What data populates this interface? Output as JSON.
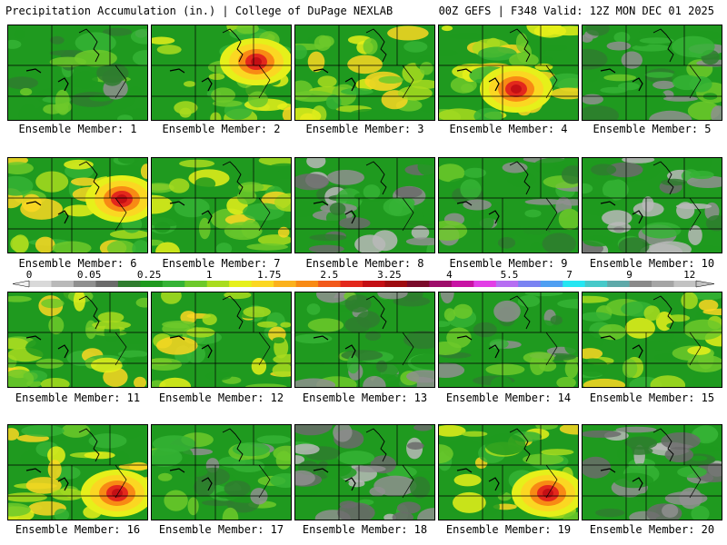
{
  "header": {
    "left": "Precipitation Accumulation (in.) | College of DuPage NEXLAB",
    "right": "00Z GEFS | F348 Valid: 12Z MON DEC 01 2025"
  },
  "chart_data": {
    "type": "heatmap",
    "title": "Precipitation Accumulation (in.)",
    "units": "in.",
    "model": "GEFS",
    "run": "00Z",
    "forecast_hour": "F348",
    "valid": "12Z MON DEC 01 2025",
    "colorbar": {
      "tick_labels": [
        "0",
        "0.05",
        "0.25",
        "1",
        "1.75",
        "2.5",
        "3.25",
        "4",
        "5.5",
        "7",
        "9",
        "12"
      ],
      "colors": [
        "#d9d9d9",
        "#b9b9b9",
        "#8f8f8f",
        "#6b6b6b",
        "#2f7d2f",
        "#1f9a1f",
        "#35b335",
        "#6dc92a",
        "#a9dc1e",
        "#e6f01a",
        "#fbd722",
        "#fbb11c",
        "#f88a14",
        "#f2591a",
        "#e3281c",
        "#c40f14",
        "#9e0b10",
        "#7a0a2a",
        "#9e0c6a",
        "#c813a4",
        "#e23ee6",
        "#b66ef2",
        "#7a83f2",
        "#4f9ff2",
        "#25e6f2",
        "#46c9c9",
        "#5ea9a9",
        "#8a8a8a",
        "#a5a5a5",
        "#c2c2c2"
      ]
    },
    "panels": [
      {
        "member": 1,
        "caption": "Ensemble Member: 1",
        "intensity": "light"
      },
      {
        "member": 2,
        "caption": "Ensemble Member: 2",
        "intensity": "heavy-north-east"
      },
      {
        "member": 3,
        "caption": "Ensemble Member: 3",
        "intensity": "moderate-north"
      },
      {
        "member": 4,
        "caption": "Ensemble Member: 4",
        "intensity": "heavy-central"
      },
      {
        "member": 5,
        "caption": "Ensemble Member: 5",
        "intensity": "light"
      },
      {
        "member": 6,
        "caption": "Ensemble Member: 6",
        "intensity": "heavy-east"
      },
      {
        "member": 7,
        "caption": "Ensemble Member: 7",
        "intensity": "moderate-south"
      },
      {
        "member": 8,
        "caption": "Ensemble Member: 8",
        "intensity": "dry"
      },
      {
        "member": 9,
        "caption": "Ensemble Member: 9",
        "intensity": "light"
      },
      {
        "member": 10,
        "caption": "Ensemble Member: 10",
        "intensity": "dry"
      },
      {
        "member": 11,
        "caption": "Ensemble Member: 11",
        "intensity": "moderate-west"
      },
      {
        "member": 12,
        "caption": "Ensemble Member: 12",
        "intensity": "moderate-band"
      },
      {
        "member": 13,
        "caption": "Ensemble Member: 13",
        "intensity": "light"
      },
      {
        "member": 14,
        "caption": "Ensemble Member: 14",
        "intensity": "light"
      },
      {
        "member": 15,
        "caption": "Ensemble Member: 15",
        "intensity": "moderate-north-east"
      },
      {
        "member": 16,
        "caption": "Ensemble Member: 16",
        "intensity": "heavy-south-east"
      },
      {
        "member": 17,
        "caption": "Ensemble Member: 17",
        "intensity": "light"
      },
      {
        "member": 18,
        "caption": "Ensemble Member: 18",
        "intensity": "dry"
      },
      {
        "member": 19,
        "caption": "Ensemble Member: 19",
        "intensity": "heavy-south-east"
      },
      {
        "member": 20,
        "caption": "Ensemble Member: 20",
        "intensity": "dry"
      }
    ]
  }
}
